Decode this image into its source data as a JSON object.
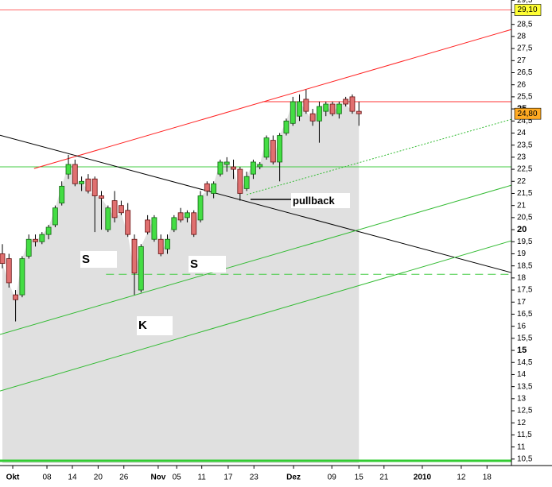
{
  "chart_data": {
    "type": "candlestick",
    "open": [
      19.0,
      18.8,
      17.3,
      17.3,
      18.9,
      19.6,
      19.5,
      19.8,
      20.2,
      21.1,
      22.3,
      22.7,
      21.9,
      22.1,
      22.1,
      21.4,
      20.0,
      21.2,
      21.0,
      20.8,
      19.6,
      17.5,
      20.4,
      19.6,
      19.6,
      19.2,
      20.0,
      20.7,
      20.5,
      20.7,
      20.4,
      21.9,
      21.5,
      22.3,
      22.7,
      22.6,
      22.5,
      21.7,
      22.3,
      22.6,
      23.0,
      23.7,
      22.8,
      24.0,
      24.4,
      24.7,
      25.4,
      24.8,
      24.5,
      24.9,
      25.2,
      24.8,
      25.4,
      25.5,
      24.9
    ],
    "high": [
      19.4,
      19.0,
      17.5,
      18.9,
      19.8,
      19.8,
      19.9,
      20.2,
      21.0,
      22.0,
      23.1,
      22.9,
      22.2,
      22.3,
      22.2,
      21.6,
      21.0,
      21.6,
      21.2,
      21.1,
      19.8,
      19.4,
      20.6,
      20.6,
      19.8,
      19.8,
      20.6,
      20.9,
      20.8,
      20.8,
      21.6,
      22.0,
      22.0,
      22.9,
      23.0,
      22.9,
      22.6,
      22.4,
      22.9,
      22.8,
      23.9,
      23.9,
      24.0,
      24.6,
      25.5,
      25.6,
      25.8,
      25.0,
      25.3,
      25.3,
      25.3,
      25.3,
      25.5,
      25.6,
      25.3
    ],
    "low": [
      18.4,
      17.6,
      16.2,
      17.2,
      18.8,
      19.3,
      19.4,
      19.6,
      20.1,
      21.0,
      22.1,
      21.8,
      21.6,
      21.5,
      19.9,
      20.0,
      19.9,
      20.3,
      20.6,
      19.7,
      17.3,
      17.4,
      19.8,
      19.5,
      18.9,
      19.0,
      19.9,
      20.3,
      20.3,
      19.7,
      20.3,
      21.4,
      21.3,
      22.2,
      22.4,
      22.1,
      21.2,
      21.6,
      22.1,
      22.5,
      22.9,
      22.7,
      22.0,
      23.9,
      24.3,
      24.5,
      24.8,
      24.3,
      23.6,
      24.7,
      24.7,
      24.6,
      25.1,
      24.8,
      24.3
    ],
    "close": [
      18.6,
      17.8,
      17.1,
      18.8,
      19.6,
      19.5,
      19.8,
      20.1,
      20.9,
      21.8,
      22.7,
      21.9,
      22.0,
      21.6,
      21.4,
      21.3,
      20.9,
      20.5,
      20.7,
      19.8,
      18.2,
      19.3,
      19.9,
      20.5,
      19.0,
      19.6,
      20.5,
      20.4,
      20.7,
      19.8,
      21.4,
      21.6,
      21.9,
      22.8,
      22.8,
      22.5,
      21.5,
      22.2,
      22.8,
      22.7,
      23.8,
      22.8,
      23.9,
      24.5,
      25.3,
      25.3,
      24.9,
      24.5,
      25.1,
      25.2,
      24.8,
      25.2,
      25.2,
      24.9,
      24.8
    ],
    "up_color": "#44dd44",
    "down_color": "#e07070",
    "area_color": "#e0e0e0",
    "xlim": [
      -0.36,
      77.1
    ],
    "xticks": [
      {
        "value": 1.57,
        "label": "Okt"
      },
      {
        "value": 6.75,
        "label": "08"
      },
      {
        "value": 10.6,
        "label": "14"
      },
      {
        "value": 14.5,
        "label": "20"
      },
      {
        "value": 18.4,
        "label": "26"
      },
      {
        "value": 23.6,
        "label": "Nov"
      },
      {
        "value": 26.4,
        "label": "05"
      },
      {
        "value": 30.2,
        "label": "11"
      },
      {
        "value": 34.2,
        "label": "17"
      },
      {
        "value": 38.1,
        "label": "23"
      },
      {
        "value": 44.1,
        "label": "Dez"
      },
      {
        "value": 49.9,
        "label": "09"
      },
      {
        "value": 54.0,
        "label": "15"
      },
      {
        "value": 57.8,
        "label": "21"
      },
      {
        "value": 63.6,
        "label": "2010"
      },
      {
        "value": 69.5,
        "label": "12"
      },
      {
        "value": 73.4,
        "label": "18"
      }
    ],
    "ylim": [
      10.33,
      29.51
    ],
    "yticks": [
      {
        "value": 10.5,
        "label": "10,5"
      },
      11,
      {
        "value": 11.5,
        "label": "11,5"
      },
      12,
      {
        "value": 12.5,
        "label": "12,5"
      },
      13,
      {
        "value": 13.5,
        "label": "13,5"
      },
      14,
      {
        "value": 14.5,
        "label": "14,5"
      },
      15,
      {
        "value": 15.5,
        "label": "15,5"
      },
      16,
      {
        "value": 16.5,
        "label": "16,5"
      },
      17,
      {
        "value": 17.5,
        "label": "17,5"
      },
      18,
      {
        "value": 18.5,
        "label": "18,5"
      },
      19,
      {
        "value": 19.5,
        "label": "19,5"
      },
      20,
      {
        "value": 20.5,
        "label": "20,5"
      },
      21,
      {
        "value": 21.5,
        "label": "21,5"
      },
      22,
      {
        "value": 22.5,
        "label": "22,5"
      },
      23,
      {
        "value": 23.5,
        "label": "23,5"
      },
      24,
      {
        "value": 24.5,
        "label": "24,5"
      },
      25,
      {
        "value": 25.5,
        "label": "25,5"
      },
      26,
      {
        "value": 26.5,
        "label": "26,5"
      },
      27,
      {
        "value": 27.5,
        "label": "27,5"
      },
      28,
      {
        "value": 28.5,
        "label": "28,5"
      },
      29,
      {
        "value": 29.5,
        "label": "29,5"
      }
    ],
    "levels": [
      {
        "value": 29.1,
        "color": "#ff6666",
        "start": -0.36
      },
      {
        "value": 25.3,
        "color": "#ff3333",
        "start": 39.4
      },
      {
        "value": 22.6,
        "color": "#44cc44",
        "start": -0.36
      },
      {
        "value": 18.15,
        "color": "#44cc44",
        "start": 15.7,
        "dashed": true
      },
      {
        "value": 10.43,
        "color": "#33cc33",
        "start": -0.36,
        "bold": true
      }
    ],
    "trendlines": [
      {
        "color": "#ff2222",
        "x": [
          4.8,
          77.1
        ],
        "values": [
          22.53,
          28.29
        ]
      },
      {
        "color": "#000000",
        "x": [
          -0.36,
          77.1
        ],
        "values": [
          23.91,
          18.22
        ]
      },
      {
        "color": "#33bb33",
        "x": [
          -0.36,
          77.1
        ],
        "values": [
          15.66,
          21.84
        ]
      },
      {
        "color": "#33bb33",
        "x": [
          -0.36,
          77.1
        ],
        "values": [
          13.32,
          19.54
        ]
      },
      {
        "color": "#33bb33",
        "x": [
          37.0,
          77.1
        ],
        "values": [
          21.45,
          24.57
        ],
        "dotted": true
      }
    ],
    "price_labels": [
      {
        "value": 29.1,
        "label": "29,10",
        "color": "#ffff33"
      },
      {
        "value": 24.8,
        "label": "24,80",
        "color": "#ffaa22"
      }
    ],
    "annotations": [
      "S",
      "S",
      "K",
      "pullback"
    ]
  }
}
